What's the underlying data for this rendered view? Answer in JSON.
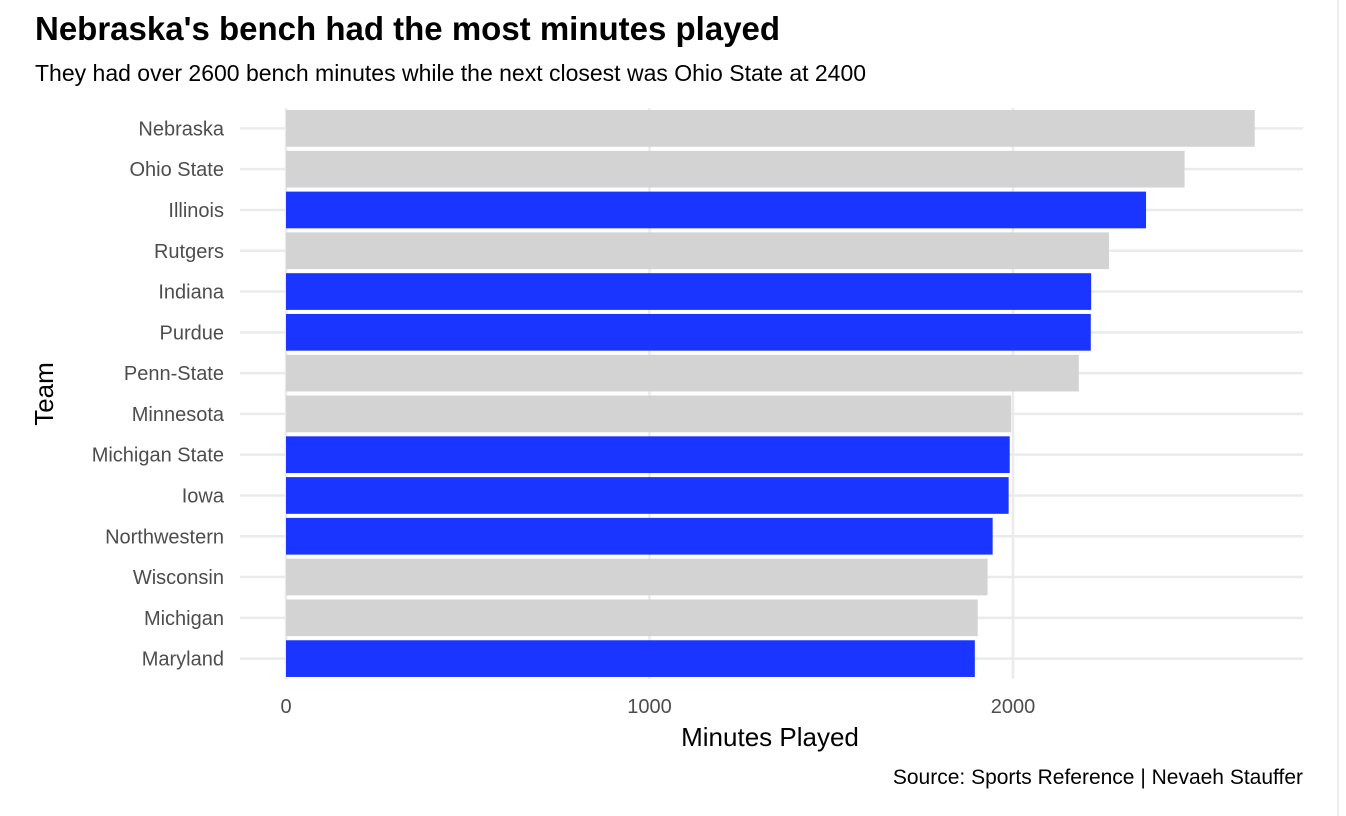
{
  "title": "Nebraska's bench had the most minutes played",
  "subtitle": "They had over 2600 bench minutes while the next closest was Ohio State at 2400",
  "caption": "Source: Sports Reference | Nevaeh Stauffer",
  "chart_data": {
    "type": "bar",
    "orientation": "horizontal",
    "xlabel": "Minutes Played",
    "ylabel": "Team",
    "xlim": [
      0,
      2800
    ],
    "x_ticks": [
      0,
      1000,
      2000
    ],
    "x_tick_labels": [
      "0",
      "1000",
      "2000"
    ],
    "grid": true,
    "categories": [
      "Nebraska",
      "Ohio State",
      "Illinois",
      "Rutgers",
      "Indiana",
      "Purdue",
      "Penn-State",
      "Minnesota",
      "Michigan State",
      "Iowa",
      "Northwestern",
      "Wisconsin",
      "Michigan",
      "Maryland"
    ],
    "values": [
      2665,
      2472,
      2366,
      2264,
      2215,
      2214,
      2181,
      1995,
      1991,
      1988,
      1944,
      1930,
      1903,
      1895
    ],
    "highlighted": [
      false,
      false,
      true,
      false,
      true,
      true,
      false,
      false,
      true,
      true,
      true,
      false,
      false,
      true
    ],
    "colors": {
      "highlight": "#1a35ff",
      "default": "#d3d3d3",
      "grid": "#ebebeb",
      "tick_text": "#4d4d4d",
      "axis_title": "#000000"
    }
  }
}
